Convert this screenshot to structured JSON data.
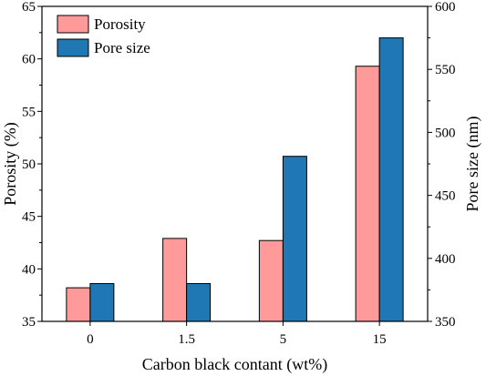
{
  "chart_data": {
    "type": "bar",
    "categories": [
      "0",
      "1.5",
      "5",
      "15"
    ],
    "xlabel": "Carbon black contant (wt%)",
    "ylabel_left": "Porosity (%)",
    "ylabel_right": "Pore size (nm)",
    "ylim_left": [
      35,
      65
    ],
    "ylim_right": [
      350,
      600
    ],
    "yticks_left": [
      35,
      40,
      45,
      50,
      55,
      60,
      65
    ],
    "yticks_right": [
      350,
      400,
      450,
      500,
      550,
      600
    ],
    "grid": false,
    "legend_position": "top-left",
    "series": [
      {
        "name": "Porosity",
        "axis": "left",
        "color": "#FF9A9A",
        "values": [
          38.2,
          42.9,
          42.7,
          59.3
        ]
      },
      {
        "name": "Pore size",
        "axis": "right",
        "color": "#1F77B4",
        "values": [
          380,
          380,
          481,
          575
        ]
      }
    ]
  }
}
